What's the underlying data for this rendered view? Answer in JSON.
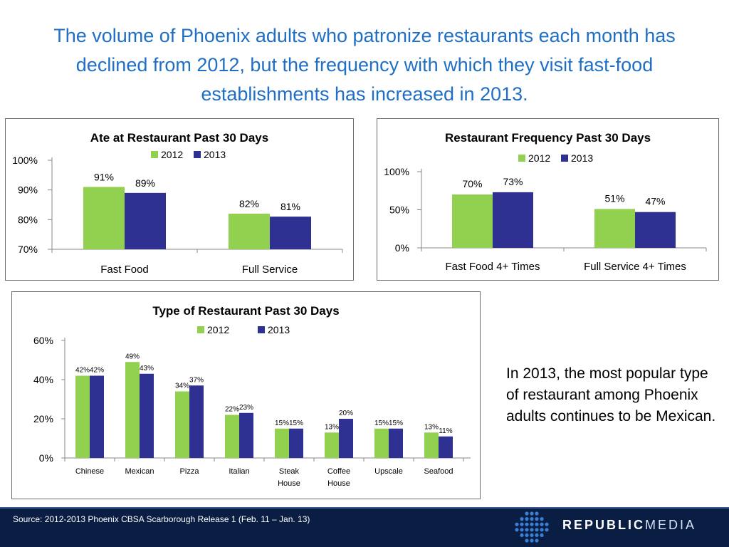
{
  "title": "The volume of Phoenix adults who patronize restaurants each month has declined from 2012, but the frequency with which they visit fast-food establishments has increased in 2013.",
  "colors": {
    "series_2012": "#92D050",
    "series_2013": "#2E3192",
    "title": "#1F6FC5"
  },
  "chart_data": [
    {
      "id": "chart1",
      "type": "bar",
      "title": "Ate at Restaurant Past 30 Days",
      "categories": [
        "Fast Food",
        "Full Service"
      ],
      "series": [
        {
          "name": "2012",
          "values": [
            91,
            82
          ],
          "labels": [
            "91%",
            "82%"
          ]
        },
        {
          "name": "2013",
          "values": [
            89,
            81
          ],
          "labels": [
            "89%",
            "81%"
          ]
        }
      ],
      "ylim": [
        70,
        100
      ],
      "yticks": [
        70,
        80,
        90,
        100
      ],
      "ytick_labels": [
        "70%",
        "80%",
        "90%",
        "100%"
      ],
      "legend": "top-center"
    },
    {
      "id": "chart2",
      "type": "bar",
      "title": "Restaurant Frequency Past 30 Days",
      "categories": [
        "Fast Food 4+ Times",
        "Full Service 4+ Times"
      ],
      "series": [
        {
          "name": "2012",
          "values": [
            70,
            51
          ],
          "labels": [
            "70%",
            "51%"
          ]
        },
        {
          "name": "2013",
          "values": [
            73,
            47
          ],
          "labels": [
            "73%",
            "47%"
          ]
        }
      ],
      "ylim": [
        0,
        100
      ],
      "yticks": [
        0,
        50,
        100
      ],
      "ytick_labels": [
        "0%",
        "50%",
        "100%"
      ],
      "legend": "top-center"
    },
    {
      "id": "chart3",
      "type": "bar",
      "title": "Type of Restaurant Past 30 Days",
      "categories": [
        [
          "Chinese"
        ],
        [
          "Mexican"
        ],
        [
          "Pizza"
        ],
        [
          "Italian"
        ],
        [
          "Steak",
          "House"
        ],
        [
          "Coffee",
          "House"
        ],
        [
          "Upscale"
        ],
        [
          "Seafood"
        ]
      ],
      "series": [
        {
          "name": "2012",
          "values": [
            42,
            49,
            34,
            22,
            15,
            13,
            15,
            13
          ],
          "labels": [
            "42%",
            "49%",
            "34%",
            "22%",
            "15%",
            "13%",
            "15%",
            "13%"
          ]
        },
        {
          "name": "2013",
          "values": [
            42,
            43,
            37,
            23,
            15,
            20,
            15,
            11
          ],
          "labels": [
            "42%",
            "43%",
            "37%",
            "23%",
            "15%",
            "20%",
            "15%",
            "11%"
          ]
        }
      ],
      "ylim": [
        0,
        60
      ],
      "yticks": [
        0,
        20,
        40,
        60
      ],
      "ytick_labels": [
        "0%",
        "20%",
        "40%",
        "60%"
      ],
      "legend": "top-center"
    }
  ],
  "side_note": "In 2013, the most popular type of restaurant among Phoenix adults continues to be Mexican.",
  "source": "Source:  2012-2013 Phoenix CBSA Scarborough Release 1 (Feb. 11 – Jan. 13)",
  "logo": {
    "bold": "REPUBLIC",
    "light": "MEDIA"
  }
}
